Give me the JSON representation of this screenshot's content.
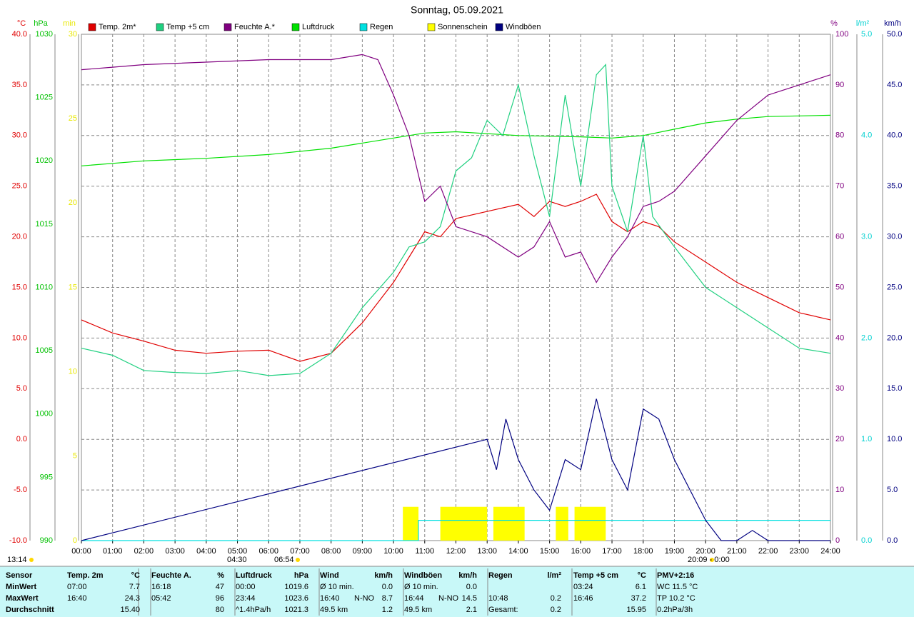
{
  "chart_data": {
    "type": "multi-axis-line",
    "title": "Sonntag, 05.09.2021",
    "grid": true,
    "xlim": [
      0,
      24
    ],
    "xticks": [
      {
        "value": 0,
        "label": "00:00"
      },
      {
        "value": 1,
        "label": "01:00"
      },
      {
        "value": 2,
        "label": "02:00"
      },
      {
        "value": 3,
        "label": "03:00"
      },
      {
        "value": 4,
        "label": "04:00"
      },
      {
        "value": 5,
        "label": "05:00"
      },
      {
        "value": 6,
        "label": "06:00"
      },
      {
        "value": 7,
        "label": "07:00"
      },
      {
        "value": 8,
        "label": "08:00"
      },
      {
        "value": 9,
        "label": "09:00"
      },
      {
        "value": 10,
        "label": "10:00"
      },
      {
        "value": 11,
        "label": "11:00"
      },
      {
        "value": 12,
        "label": "12:00"
      },
      {
        "value": 13,
        "label": "13:00"
      },
      {
        "value": 14,
        "label": "14:00"
      },
      {
        "value": 15,
        "label": "15:00"
      },
      {
        "value": 16,
        "label": "16:00"
      },
      {
        "value": 17,
        "label": "17:00"
      },
      {
        "value": 18,
        "label": "18:00"
      },
      {
        "value": 19,
        "label": "19:00"
      },
      {
        "value": 20,
        "label": "20:00"
      },
      {
        "value": 21,
        "label": "21:00"
      },
      {
        "value": 22,
        "label": "22:00"
      },
      {
        "value": 23,
        "label": "23:00"
      },
      {
        "value": 24,
        "label": "24:00"
      }
    ],
    "axes": [
      {
        "label": "°C",
        "color": "#e00000",
        "side": "left",
        "lim": [
          -10,
          40
        ],
        "ticks": [
          {
            "value": 40,
            "label": "40.0"
          },
          {
            "value": 35,
            "label": "35.0"
          },
          {
            "value": 30,
            "label": "30.0"
          },
          {
            "value": 25,
            "label": "25.0"
          },
          {
            "value": 20,
            "label": "20.0"
          },
          {
            "value": 15,
            "label": "15.0"
          },
          {
            "value": 10,
            "label": "10.0"
          },
          {
            "value": 5,
            "label": "5.0"
          },
          {
            "value": 0,
            "label": "0.0"
          },
          {
            "value": -5,
            "label": "-5.0"
          },
          {
            "value": -10,
            "label": "-10.0"
          }
        ]
      },
      {
        "label": "hPa",
        "color": "#00c000",
        "side": "left",
        "lim": [
          990,
          1030
        ],
        "ticks": [
          1030,
          1025,
          1020,
          1015,
          1010,
          1005,
          1000,
          995,
          990
        ]
      },
      {
        "label": "min",
        "color": "#e8e800",
        "side": "left",
        "lim": [
          0,
          30
        ],
        "ticks": [
          30,
          25,
          20,
          15,
          10,
          5,
          0
        ]
      },
      {
        "label": "%",
        "color": "#800080",
        "side": "right",
        "lim": [
          0,
          100
        ],
        "ticks": [
          100,
          90,
          80,
          70,
          60,
          50,
          40,
          30,
          20,
          10,
          0
        ]
      },
      {
        "label": "l/m²",
        "color": "#00d0d0",
        "side": "right",
        "lim": [
          0,
          5
        ],
        "ticks": [
          {
            "value": 5,
            "label": "5.0"
          },
          {
            "value": 4,
            "label": "4.0"
          },
          {
            "value": 3,
            "label": "3.0"
          },
          {
            "value": 2,
            "label": "2.0"
          },
          {
            "value": 1,
            "label": "1.0"
          },
          {
            "value": 0,
            "label": "0.0"
          }
        ]
      },
      {
        "label": "km/h",
        "color": "#000080",
        "side": "right",
        "lim": [
          0,
          50
        ],
        "ticks": [
          {
            "value": 50,
            "label": "50.0"
          },
          {
            "value": 45,
            "label": "45.0"
          },
          {
            "value": 40,
            "label": "40.0"
          },
          {
            "value": 35,
            "label": "35.0"
          },
          {
            "value": 30,
            "label": "30.0"
          },
          {
            "value": 25,
            "label": "25.0"
          },
          {
            "value": 20,
            "label": "20.0"
          },
          {
            "value": 15,
            "label": "15.0"
          },
          {
            "value": 10,
            "label": "10.0"
          },
          {
            "value": 5,
            "label": "5.0"
          },
          {
            "value": 0,
            "label": "0.0"
          }
        ]
      }
    ],
    "series": [
      {
        "name": "Temp. 2m*",
        "color": "#e00000",
        "axis": 0,
        "kind": "line",
        "x": [
          0,
          1,
          2,
          3,
          4,
          5,
          6,
          7,
          8,
          9,
          10,
          10.5,
          11,
          11.5,
          12,
          13,
          14,
          14.5,
          15,
          15.5,
          16,
          16.5,
          17,
          17.5,
          18,
          18.5,
          19,
          20,
          21,
          22,
          23,
          24
        ],
        "values": [
          11.8,
          10.5,
          9.7,
          8.8,
          8.5,
          8.7,
          8.8,
          7.7,
          8.5,
          11.5,
          15.5,
          18,
          20.5,
          20,
          21.8,
          22.5,
          23.2,
          22,
          23.5,
          23,
          23.5,
          24.2,
          21.5,
          20.5,
          21.5,
          21,
          19.5,
          17.5,
          15.5,
          14,
          12.5,
          11.8
        ]
      },
      {
        "name": "Temp +5 cm",
        "color": "#20d080",
        "axis": 0,
        "kind": "line",
        "x": [
          0,
          1,
          2,
          3,
          4,
          5,
          6,
          7,
          8,
          9,
          10,
          10.5,
          11,
          11.5,
          12,
          12.5,
          13,
          13.5,
          14,
          14.5,
          15,
          15.5,
          16,
          16.5,
          16.8,
          17,
          17.5,
          18,
          18.3,
          19,
          20,
          21,
          22,
          23,
          24
        ],
        "values": [
          9,
          8.3,
          6.8,
          6.6,
          6.5,
          6.8,
          6.3,
          6.5,
          8.5,
          13,
          16.5,
          19,
          19.5,
          21,
          26.5,
          27.8,
          31.5,
          30,
          35,
          28,
          22,
          34,
          25,
          36,
          37,
          25,
          20.5,
          30,
          22,
          19,
          15,
          13,
          11,
          9,
          8.5
        ]
      },
      {
        "name": "Feuchte A.*",
        "color": "#800080",
        "axis": 3,
        "kind": "line",
        "x": [
          0,
          1,
          2,
          4,
          6,
          8,
          9,
          9.5,
          10,
          10.5,
          11,
          11.5,
          12,
          13,
          14,
          14.5,
          15,
          15.5,
          16,
          16.5,
          17,
          17.5,
          18,
          18.5,
          19,
          20,
          21,
          22,
          23,
          24
        ],
        "values": [
          93,
          93.5,
          94,
          94.5,
          95,
          95,
          96,
          95,
          88,
          80,
          67,
          70,
          62,
          60,
          56,
          58,
          63,
          56,
          57,
          51,
          56,
          60,
          66,
          67,
          69,
          76,
          83,
          88,
          90,
          92
        ]
      },
      {
        "name": "Luftdruck",
        "color": "#00e000",
        "axis": 1,
        "kind": "line",
        "x": [
          0,
          2,
          4,
          6,
          8,
          10,
          11,
          12,
          14,
          16,
          17,
          18,
          19,
          20,
          21,
          22,
          24
        ],
        "values": [
          1019.6,
          1020,
          1020.2,
          1020.5,
          1021,
          1021.8,
          1022.2,
          1022.3,
          1022,
          1021.9,
          1021.8,
          1022,
          1022.5,
          1023,
          1023.3,
          1023.5,
          1023.6
        ]
      },
      {
        "name": "Regen",
        "color": "#00e0e0",
        "axis": 4,
        "kind": "line",
        "x": [
          0,
          10.8,
          10.8,
          24
        ],
        "values": [
          0,
          0,
          0.2,
          0.2
        ]
      },
      {
        "name": "Sonnenschein",
        "color": "#ffff00",
        "axis": 2,
        "kind": "bars",
        "starts": [
          10.3,
          11.5,
          13.2,
          15.2,
          15.8
        ],
        "ends": [
          10.8,
          13,
          14.2,
          15.6,
          16.8
        ],
        "values": [
          2,
          2,
          2,
          2,
          2
        ]
      },
      {
        "name": "Windböen",
        "color": "#000080",
        "axis": 5,
        "kind": "line",
        "x": [
          0,
          13,
          13.3,
          13.6,
          14,
          14.5,
          15,
          15.5,
          16,
          16.5,
          17,
          17.5,
          18,
          18.5,
          19,
          19.5,
          20,
          20.5,
          21,
          21.5,
          22,
          24
        ],
        "values": [
          0,
          10,
          7,
          12,
          8,
          5,
          3,
          8,
          7,
          14,
          8,
          5,
          13,
          12,
          8,
          5,
          2,
          0,
          0,
          1,
          0,
          0
        ]
      }
    ],
    "annotations": [
      "13:14",
      "04:30",
      "06:54",
      "20:09 - 0:00"
    ]
  },
  "stats_table": {
    "header": [
      "Sensor",
      [
        "Temp. 2m",
        "°C"
      ],
      [
        "Feuchte A.",
        "%"
      ],
      [
        "Luftdruck",
        "hPa"
      ],
      [
        "Wind",
        "km/h"
      ],
      [
        "Windböen",
        "km/h"
      ],
      [
        "Regen",
        "l/m²"
      ],
      [
        "Temp +5 cm",
        "°C"
      ],
      "PMV+2:16"
    ],
    "rows": [
      [
        "MinWert",
        [
          "07:00",
          "7.7"
        ],
        [
          "16:18",
          "47"
        ],
        [
          "00:00",
          "1019.6"
        ],
        [
          "Ø 10 min.",
          "0.0"
        ],
        [
          "Ø 10 min.",
          "0.0"
        ],
        null,
        [
          "03:24",
          "6.1"
        ],
        "WC 11.5 °C"
      ],
      [
        "MaxWert",
        [
          "16:40",
          "24.3"
        ],
        [
          "05:42",
          "96"
        ],
        [
          "23:44",
          "1023.6"
        ],
        [
          "16:40",
          "N-NO",
          "8.7"
        ],
        [
          "16:44",
          "N-NO",
          "14.5"
        ],
        [
          "10:48",
          "0.2"
        ],
        [
          "16:46",
          "37.2"
        ],
        "TP 10.2 °C"
      ],
      [
        "Durchschnitt",
        [
          null,
          "15.40"
        ],
        [
          null,
          "80"
        ],
        [
          "^1.4hPa/h",
          "1021.3"
        ],
        [
          "49.5 km",
          "1.2"
        ],
        [
          "49.5 km",
          "2.1"
        ],
        [
          "Gesamt:",
          "0.2"
        ],
        [
          null,
          "15.95"
        ],
        "0.2hPa/3h"
      ]
    ]
  }
}
